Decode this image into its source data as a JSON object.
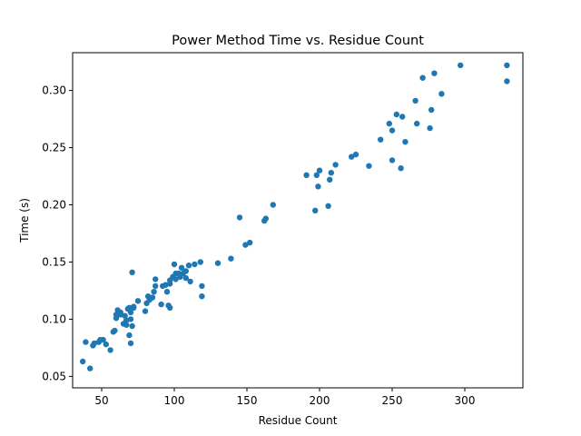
{
  "chart_data": {
    "type": "scatter",
    "title": "Power Method Time vs. Residue Count",
    "xlabel": "Residue Count",
    "ylabel": "Time (s)",
    "xlim": [
      30,
      340
    ],
    "ylim": [
      0.04,
      0.333
    ],
    "grid": false,
    "marker_color": "#1f77b4",
    "x_ticks": [
      50,
      100,
      150,
      200,
      250,
      300
    ],
    "x_tick_labels": [
      "50",
      "100",
      "150",
      "200",
      "250",
      "300"
    ],
    "y_ticks": [
      0.05,
      0.1,
      0.15,
      0.2,
      0.25,
      0.3
    ],
    "y_tick_labels": [
      "0.05",
      "0.10",
      "0.15",
      "0.20",
      "0.25",
      "0.30"
    ],
    "points": [
      [
        37,
        0.063
      ],
      [
        39,
        0.08
      ],
      [
        42,
        0.057
      ],
      [
        44,
        0.077
      ],
      [
        45,
        0.079
      ],
      [
        48,
        0.08
      ],
      [
        49,
        0.082
      ],
      [
        51,
        0.082
      ],
      [
        53,
        0.078
      ],
      [
        56,
        0.073
      ],
      [
        58,
        0.089
      ],
      [
        59,
        0.09
      ],
      [
        60,
        0.101
      ],
      [
        60,
        0.104
      ],
      [
        61,
        0.108
      ],
      [
        63,
        0.104
      ],
      [
        63,
        0.106
      ],
      [
        65,
        0.096
      ],
      [
        66,
        0.103
      ],
      [
        67,
        0.095
      ],
      [
        67,
        0.099
      ],
      [
        68,
        0.109
      ],
      [
        69,
        0.11
      ],
      [
        69,
        0.086
      ],
      [
        70,
        0.079
      ],
      [
        70,
        0.1
      ],
      [
        70,
        0.106
      ],
      [
        71,
        0.094
      ],
      [
        71,
        0.141
      ],
      [
        72,
        0.111
      ],
      [
        72,
        0.11
      ],
      [
        75,
        0.116
      ],
      [
        80,
        0.107
      ],
      [
        81,
        0.114
      ],
      [
        82,
        0.12
      ],
      [
        83,
        0.117
      ],
      [
        85,
        0.119
      ],
      [
        86,
        0.124
      ],
      [
        87,
        0.129
      ],
      [
        87,
        0.135
      ],
      [
        91,
        0.113
      ],
      [
        92,
        0.129
      ],
      [
        94,
        0.13
      ],
      [
        95,
        0.124
      ],
      [
        96,
        0.112
      ],
      [
        97,
        0.11
      ],
      [
        97,
        0.131
      ],
      [
        97,
        0.134
      ],
      [
        99,
        0.137
      ],
      [
        100,
        0.148
      ],
      [
        101,
        0.135
      ],
      [
        101,
        0.14
      ],
      [
        103,
        0.14
      ],
      [
        104,
        0.137
      ],
      [
        105,
        0.145
      ],
      [
        106,
        0.14
      ],
      [
        108,
        0.142
      ],
      [
        108,
        0.136
      ],
      [
        110,
        0.147
      ],
      [
        111,
        0.133
      ],
      [
        114,
        0.148
      ],
      [
        118,
        0.15
      ],
      [
        119,
        0.129
      ],
      [
        119,
        0.12
      ],
      [
        130,
        0.149
      ],
      [
        139,
        0.153
      ],
      [
        145,
        0.189
      ],
      [
        149,
        0.165
      ],
      [
        152,
        0.167
      ],
      [
        162,
        0.186
      ],
      [
        163,
        0.188
      ],
      [
        168,
        0.2
      ],
      [
        191,
        0.226
      ],
      [
        197,
        0.195
      ],
      [
        198,
        0.226
      ],
      [
        199,
        0.216
      ],
      [
        200,
        0.23
      ],
      [
        206,
        0.199
      ],
      [
        207,
        0.222
      ],
      [
        208,
        0.228
      ],
      [
        211,
        0.235
      ],
      [
        222,
        0.242
      ],
      [
        225,
        0.244
      ],
      [
        234,
        0.234
      ],
      [
        242,
        0.257
      ],
      [
        248,
        0.271
      ],
      [
        250,
        0.265
      ],
      [
        250,
        0.239
      ],
      [
        253,
        0.279
      ],
      [
        256,
        0.232
      ],
      [
        257,
        0.277
      ],
      [
        259,
        0.255
      ],
      [
        266,
        0.291
      ],
      [
        267,
        0.271
      ],
      [
        271,
        0.311
      ],
      [
        276,
        0.267
      ],
      [
        277,
        0.283
      ],
      [
        279,
        0.315
      ],
      [
        284,
        0.297
      ],
      [
        297,
        0.322
      ],
      [
        329,
        0.322
      ],
      [
        329,
        0.308
      ]
    ]
  }
}
